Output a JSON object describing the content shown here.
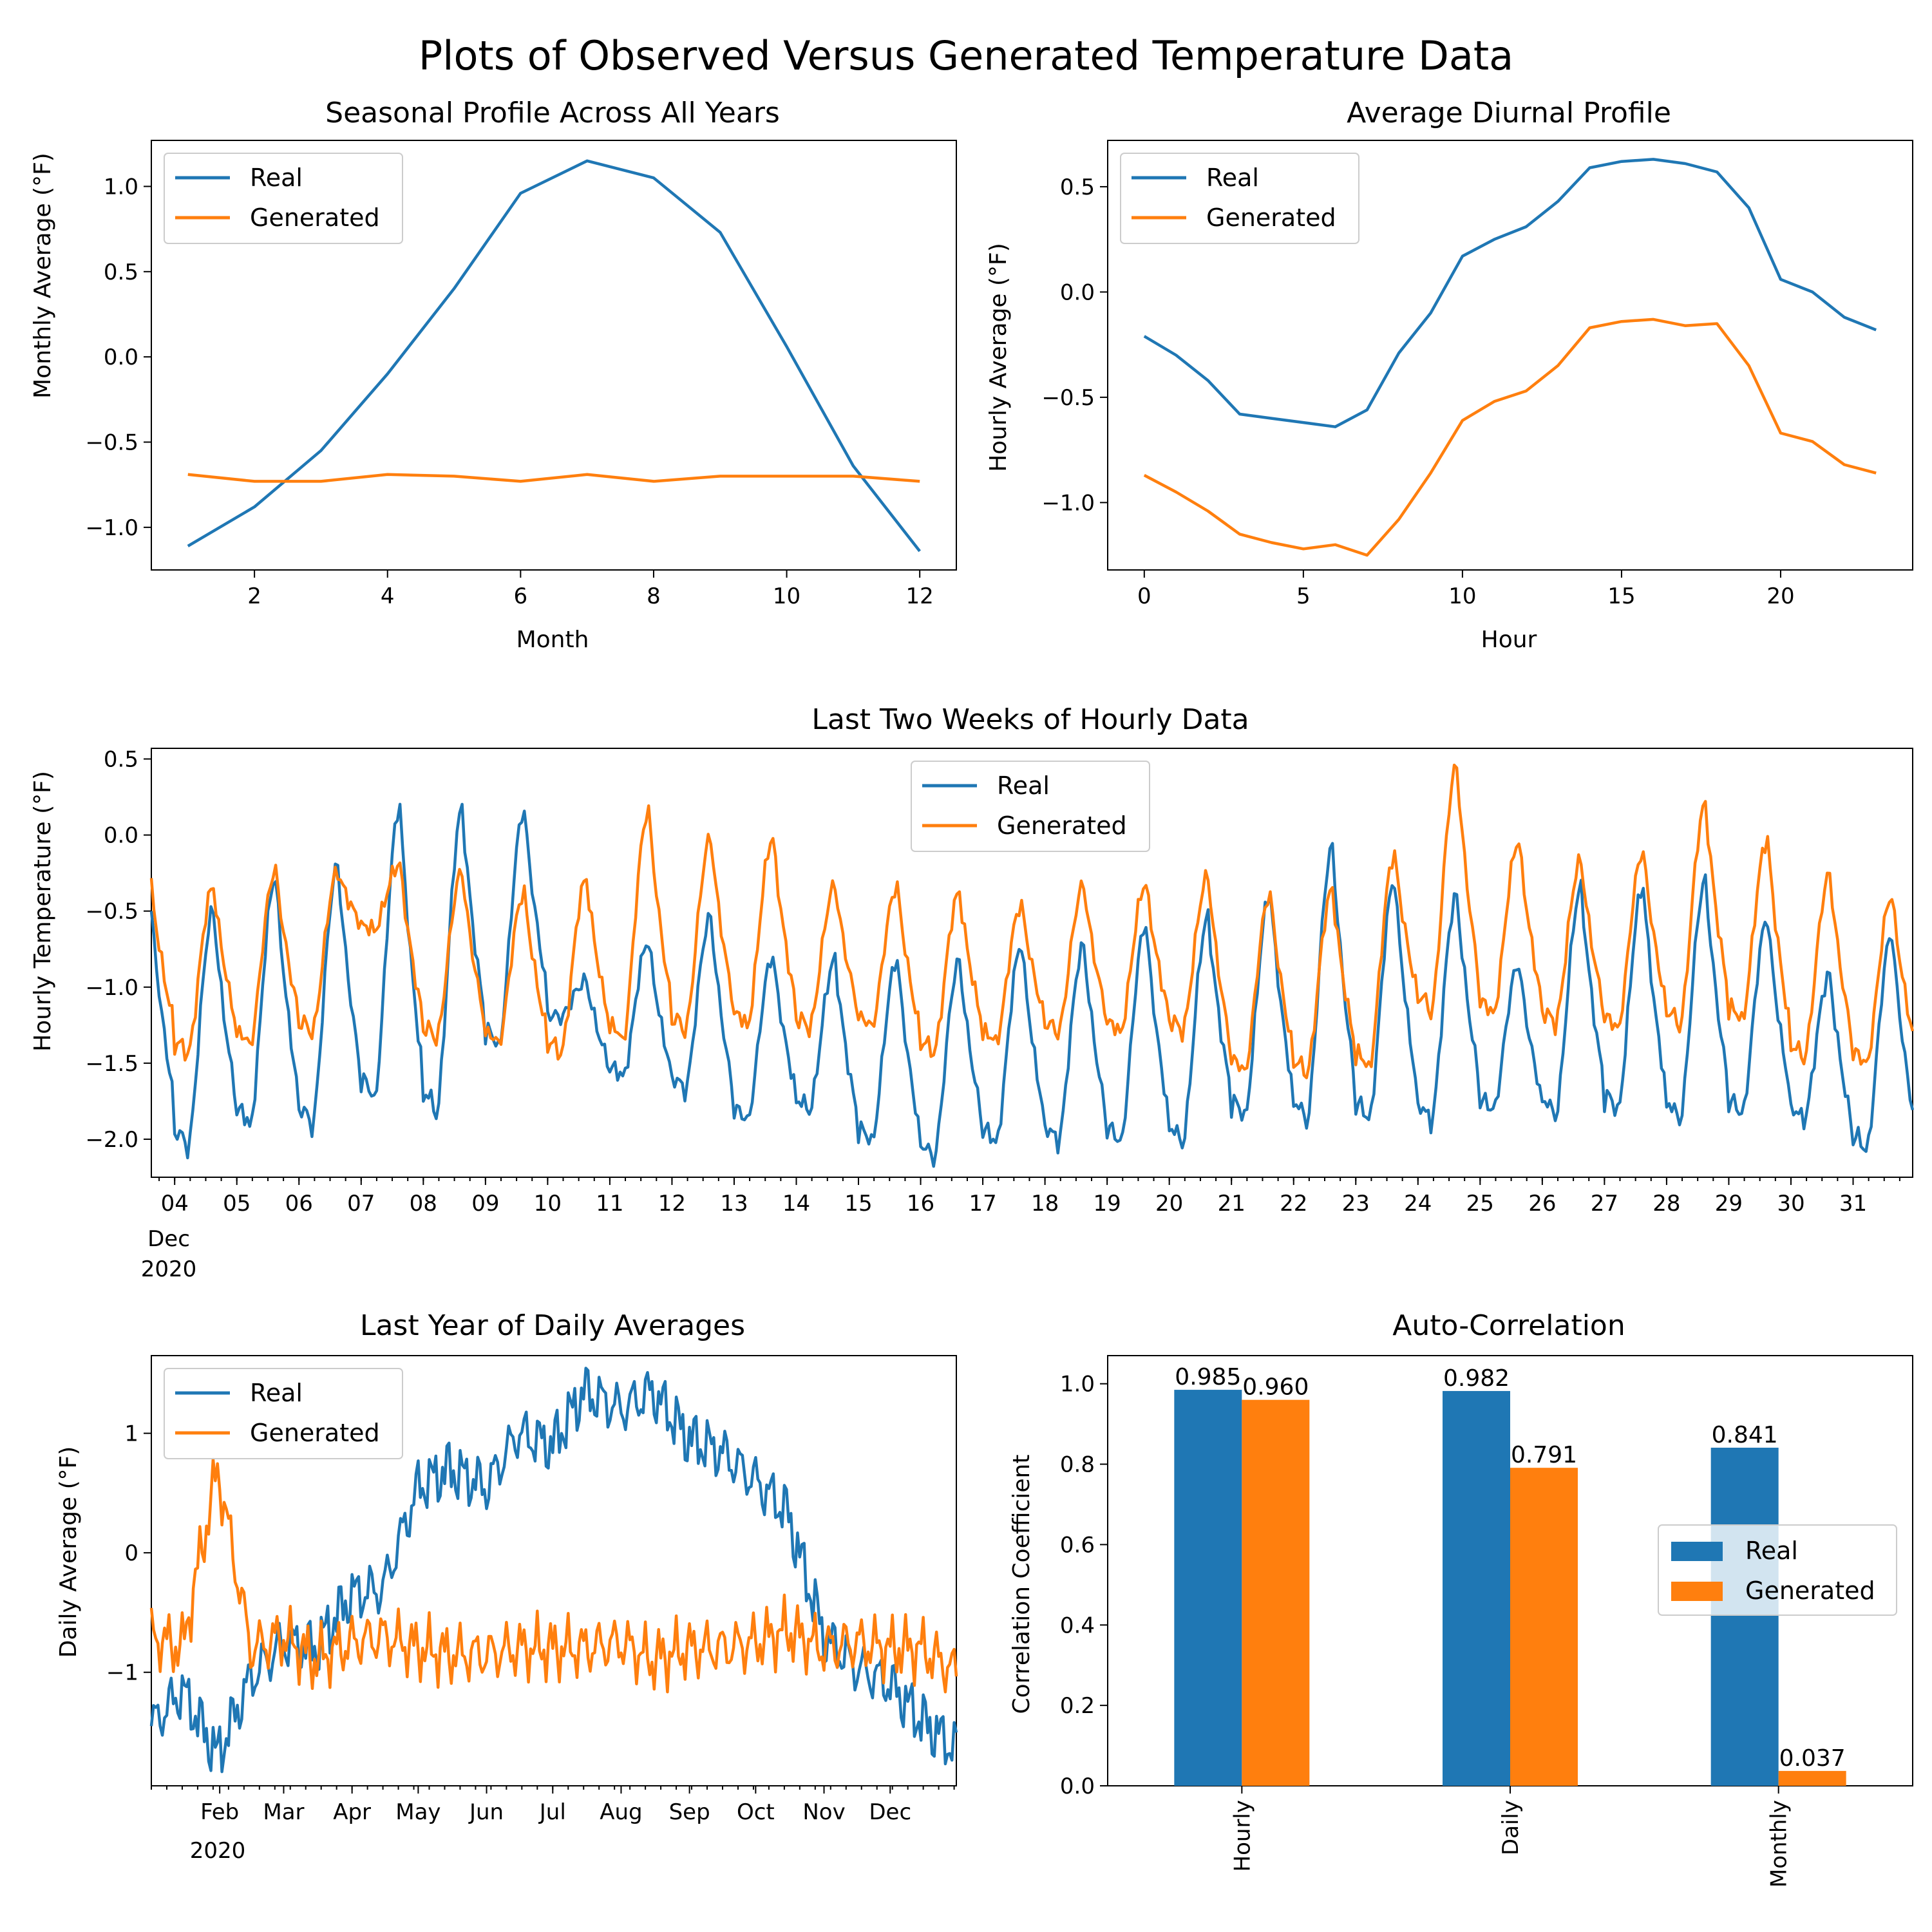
{
  "figure": {
    "title": "Plots of Observed Versus Generated Temperature Data"
  },
  "colors": {
    "real": "#1f77b4",
    "generated": "#ff7f0e"
  },
  "chart_data": [
    {
      "id": "seasonal",
      "type": "line",
      "title": "Seasonal Profile Across All Years",
      "xlabel": "Month",
      "ylabel": "Monthly Average (°F)",
      "xlim": [
        0.45,
        12.55
      ],
      "ylim": [
        -1.25,
        1.27
      ],
      "xticks": [
        2,
        4,
        6,
        8,
        10,
        12
      ],
      "xtick_labels": [
        "2",
        "4",
        "6",
        "8",
        "10",
        "12"
      ],
      "yticks": [
        -1.0,
        -0.5,
        0.0,
        0.5,
        1.0
      ],
      "ytick_labels": [
        "−1.0",
        "−0.5",
        "0.0",
        "0.5",
        "1.0"
      ],
      "legend": "upper-left",
      "x": [
        1,
        2,
        3,
        4,
        5,
        6,
        7,
        8,
        9,
        10,
        11,
        12
      ],
      "series": [
        {
          "name": "Real",
          "values": [
            -1.11,
            -0.88,
            -0.55,
            -0.1,
            0.4,
            0.96,
            1.15,
            1.05,
            0.73,
            0.06,
            -0.64,
            -1.14
          ]
        },
        {
          "name": "Generated",
          "values": [
            -0.69,
            -0.73,
            -0.73,
            -0.69,
            -0.7,
            -0.73,
            -0.69,
            -0.73,
            -0.7,
            -0.7,
            -0.7,
            -0.73
          ]
        }
      ]
    },
    {
      "id": "diurnal",
      "type": "line",
      "title": "Average Diurnal Profile",
      "xlabel": "Hour",
      "ylabel": "Hourly Average (°F)",
      "xlim": [
        -1.15,
        24.15
      ],
      "ylim": [
        -1.32,
        0.72
      ],
      "xticks": [
        0,
        5,
        10,
        15,
        20
      ],
      "xtick_labels": [
        "0",
        "5",
        "10",
        "15",
        "20"
      ],
      "yticks": [
        -1.0,
        -0.5,
        0.0,
        0.5
      ],
      "ytick_labels": [
        "−1.0",
        "−0.5",
        "0.0",
        "0.5"
      ],
      "legend": "upper-left",
      "x": [
        0,
        1,
        2,
        3,
        4,
        5,
        6,
        7,
        8,
        9,
        10,
        11,
        12,
        13,
        14,
        15,
        16,
        17,
        18,
        19,
        20,
        21,
        22,
        23
      ],
      "series": [
        {
          "name": "Real",
          "values": [
            -0.21,
            -0.3,
            -0.42,
            -0.58,
            -0.6,
            -0.62,
            -0.64,
            -0.56,
            -0.29,
            -0.1,
            0.17,
            0.25,
            0.31,
            0.43,
            0.59,
            0.62,
            0.63,
            0.61,
            0.57,
            0.4,
            0.06,
            0.0,
            -0.12,
            -0.18
          ]
        },
        {
          "name": "Generated",
          "values": [
            -0.87,
            -0.95,
            -1.04,
            -1.15,
            -1.19,
            -1.22,
            -1.2,
            -1.25,
            -1.08,
            -0.86,
            -0.61,
            -0.52,
            -0.47,
            -0.35,
            -0.17,
            -0.14,
            -0.13,
            -0.16,
            -0.15,
            -0.35,
            -0.67,
            -0.71,
            -0.82,
            -0.86
          ]
        }
      ]
    },
    {
      "id": "hourly",
      "type": "line",
      "title": "Last Two Weeks of Hourly Data",
      "xlabel": "",
      "ylabel": "Hourly Temperature (°F)",
      "x_domain": "hours from 2020-12-03 15:00 to 2020-12-31 23:00",
      "xlim_dates": [
        "2020-12-03 15:00",
        "2020-12-31 23:00"
      ],
      "ylim": [
        -2.25,
        0.57
      ],
      "yticks": [
        -2.0,
        -1.5,
        -1.0,
        -0.5,
        0.0,
        0.5
      ],
      "ytick_labels": [
        "−2.0",
        "−1.5",
        "−1.0",
        "−0.5",
        "0.0",
        "0.5"
      ],
      "xtick_dates": [
        "2020-12-04",
        "2020-12-05",
        "2020-12-06",
        "2020-12-07",
        "2020-12-08",
        "2020-12-09",
        "2020-12-10",
        "2020-12-11",
        "2020-12-12",
        "2020-12-13",
        "2020-12-14",
        "2020-12-15",
        "2020-12-16",
        "2020-12-17",
        "2020-12-18",
        "2020-12-19",
        "2020-12-20",
        "2020-12-21",
        "2020-12-22",
        "2020-12-23",
        "2020-12-24",
        "2020-12-25",
        "2020-12-26",
        "2020-12-27",
        "2020-12-28",
        "2020-12-29",
        "2020-12-30",
        "2020-12-31"
      ],
      "xtick_labels": [
        "04",
        "05",
        "06",
        "07",
        "08",
        "09",
        "10",
        "11",
        "12",
        "13",
        "14",
        "15",
        "16",
        "17",
        "18",
        "19",
        "20",
        "21",
        "22",
        "23",
        "24",
        "25",
        "26",
        "27",
        "28",
        "29",
        "30",
        "31"
      ],
      "xtick_sublabel": [
        "Dec",
        "2020"
      ],
      "legend": "upper-center",
      "day_dates": [
        "2020-12-04",
        "2020-12-05",
        "2020-12-06",
        "2020-12-07",
        "2020-12-08",
        "2020-12-09",
        "2020-12-10",
        "2020-12-11",
        "2020-12-12",
        "2020-12-13",
        "2020-12-14",
        "2020-12-15",
        "2020-12-16",
        "2020-12-17",
        "2020-12-18",
        "2020-12-19",
        "2020-12-20",
        "2020-12-21",
        "2020-12-22",
        "2020-12-23",
        "2020-12-24",
        "2020-12-25",
        "2020-12-26",
        "2020-12-27",
        "2020-12-28",
        "2020-12-29",
        "2020-12-30",
        "2020-12-31"
      ],
      "series": [
        {
          "name": "Real",
          "daily_min": [
            -2.07,
            -1.93,
            -1.93,
            -1.76,
            -1.85,
            -1.41,
            -1.2,
            -1.6,
            -1.69,
            -1.89,
            -1.82,
            -2.03,
            -2.14,
            -2.04,
            -2.03,
            -2.04,
            -2.04,
            -1.87,
            -1.9,
            -1.89,
            -1.9,
            -1.82,
            -1.86,
            -1.83,
            -1.89,
            -1.85,
            -1.88,
            -2.09
          ],
          "daily_max": [
            -0.5,
            -0.28,
            -0.2,
            0.19,
            0.17,
            0.16,
            -0.96,
            -0.7,
            -0.54,
            -0.8,
            -0.82,
            -0.82,
            -0.83,
            -0.72,
            -0.73,
            -0.59,
            -0.54,
            -0.38,
            -0.08,
            -0.3,
            -0.4,
            -0.85,
            -0.35,
            -0.34,
            -0.3,
            -0.55,
            -0.92,
            -0.65
          ]
        },
        {
          "name": "Generated",
          "daily_min": [
            -1.45,
            -1.39,
            -1.31,
            -0.63,
            -1.35,
            -1.38,
            -1.45,
            -1.37,
            -1.3,
            -1.27,
            -1.28,
            -1.27,
            -1.44,
            -1.37,
            -1.31,
            -1.31,
            -1.3,
            -1.57,
            -1.58,
            -1.55,
            -1.18,
            -1.19,
            -1.25,
            -1.29,
            -1.27,
            -1.23,
            -1.48,
            -1.52
          ],
          "daily_max": [
            -0.34,
            -0.23,
            -0.24,
            -0.19,
            -0.24,
            -0.38,
            -0.29,
            0.16,
            -0.02,
            -0.02,
            -0.33,
            -0.34,
            -0.38,
            -0.46,
            -0.33,
            -0.32,
            -0.27,
            -0.39,
            -0.36,
            -0.13,
            0.45,
            -0.04,
            -0.17,
            -0.11,
            0.2,
            -0.03,
            -0.26,
            -0.4
          ]
        }
      ]
    },
    {
      "id": "daily",
      "type": "line",
      "title": "Last Year of Daily Averages",
      "xlabel": "",
      "ylabel": "Daily Average (°F)",
      "x_domain": "days from 2020-01-01 to 2020-12-31",
      "ylim": [
        -1.95,
        1.65
      ],
      "yticks": [
        -1,
        0,
        1
      ],
      "ytick_labels": [
        "−1",
        "0",
        "1"
      ],
      "xtick_dates": [
        "2020-02-01",
        "2020-03-01",
        "2020-04-01",
        "2020-05-01",
        "2020-06-01",
        "2020-07-01",
        "2020-08-01",
        "2020-09-01",
        "2020-10-01",
        "2020-11-01",
        "2020-12-01"
      ],
      "xtick_labels": [
        "Feb",
        "Mar",
        "Apr",
        "May",
        "Jun",
        "Jul",
        "Aug",
        "Sep",
        "Oct",
        "Nov",
        "Dec"
      ],
      "xtick_sublabel": [
        "2020"
      ],
      "legend": "upper-left",
      "anchor_dates": [
        "2020-01-01",
        "2020-01-15",
        "2020-01-31",
        "2020-02-15",
        "2020-03-01",
        "2020-03-15",
        "2020-04-01",
        "2020-04-15",
        "2020-05-01",
        "2020-05-15",
        "2020-06-01",
        "2020-06-15",
        "2020-07-01",
        "2020-07-15",
        "2020-08-01",
        "2020-08-15",
        "2020-09-01",
        "2020-09-15",
        "2020-10-01",
        "2020-10-15",
        "2020-11-01",
        "2020-11-15",
        "2020-12-01",
        "2020-12-15",
        "2020-12-31"
      ],
      "series": [
        {
          "name": "Real",
          "values": [
            -1.45,
            -1.15,
            -1.7,
            -1.05,
            -0.75,
            -0.8,
            -0.35,
            -0.3,
            0.55,
            0.7,
            0.55,
            1.0,
            0.9,
            1.35,
            1.2,
            1.35,
            0.95,
            0.85,
            0.6,
            0.35,
            -0.7,
            -0.95,
            -1.1,
            -1.4,
            -1.65
          ]
        },
        {
          "name": "Generated",
          "values": [
            -0.7,
            -0.8,
            0.7,
            -0.8,
            -0.7,
            -0.9,
            -0.75,
            -0.7,
            -0.8,
            -0.85,
            -0.85,
            -0.8,
            -0.8,
            -0.8,
            -0.75,
            -0.9,
            -0.8,
            -0.8,
            -0.75,
            -0.65,
            -0.8,
            -0.75,
            -0.8,
            -0.8,
            -1.0
          ]
        }
      ]
    },
    {
      "id": "autocorr",
      "type": "bar",
      "title": "Auto-Correlation",
      "xlabel": "",
      "ylabel": "Correlation Coefficient",
      "ylim": [
        0.0,
        1.07
      ],
      "yticks": [
        0.0,
        0.2,
        0.4,
        0.6,
        0.8,
        1.0
      ],
      "ytick_labels": [
        "0.0",
        "0.2",
        "0.4",
        "0.6",
        "0.8",
        "1.0"
      ],
      "categories": [
        "Hourly",
        "Daily",
        "Monthly"
      ],
      "legend": "center-right",
      "series": [
        {
          "name": "Real",
          "values": [
            0.985,
            0.982,
            0.841
          ],
          "labels": [
            "0.985",
            "0.982",
            "0.841"
          ]
        },
        {
          "name": "Generated",
          "values": [
            0.96,
            0.791,
            0.037
          ],
          "labels": [
            "0.960",
            "0.791",
            "0.037"
          ]
        }
      ]
    }
  ]
}
